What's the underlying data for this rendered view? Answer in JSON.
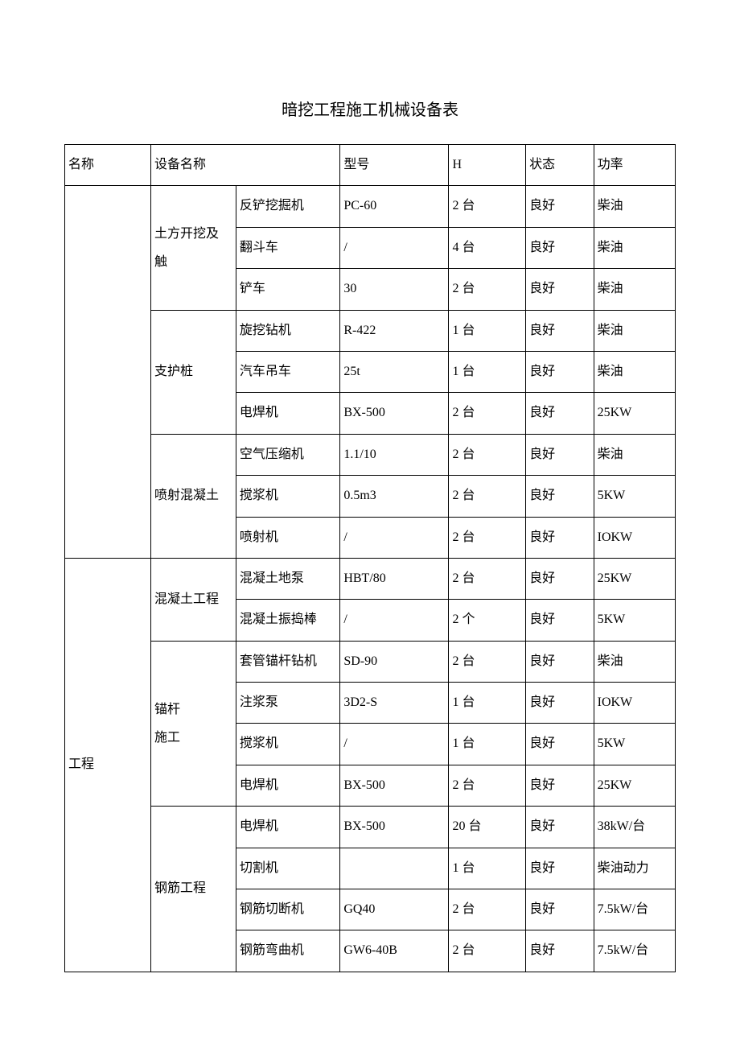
{
  "title": "暗挖工程施工机械设备表",
  "headers": {
    "name": "名称",
    "equip_name": "设备名称",
    "model": "型号",
    "h": "H",
    "status": "状态",
    "power": "功率"
  },
  "col1_group2": "工程",
  "categories": {
    "earthwork": "土方开挖及\n触",
    "piling": "支护桩",
    "shotcrete": "喷射混凝土",
    "concrete": "混凝土工程",
    "anchor": "锚杆\n施工",
    "rebar": "钢筋工程"
  },
  "rows": [
    {
      "equip": "反铲挖掘机",
      "model": "PC-60",
      "qty": "2 台",
      "status": "良好",
      "power": "柴油"
    },
    {
      "equip": "翻斗车",
      "model": "/",
      "qty": "4 台",
      "status": "良好",
      "power": "柴油"
    },
    {
      "equip": "铲车",
      "model": "30",
      "qty": "2 台",
      "status": "良好",
      "power": "柴油"
    },
    {
      "equip": "旋挖钻机",
      "model": "R-422",
      "qty": "1 台",
      "status": "良好",
      "power": "柴油"
    },
    {
      "equip": "汽车吊车",
      "model": "25t",
      "qty": "1 台",
      "status": "良好",
      "power": "柴油"
    },
    {
      "equip": "电焊机",
      "model": "BX-500",
      "qty": "2 台",
      "status": "良好",
      "power": "25KW"
    },
    {
      "equip": "空气压缩机",
      "model": "1.1/10",
      "qty": "2 台",
      "status": "良好",
      "power": "柴油"
    },
    {
      "equip": "搅浆机",
      "model": "0.5m3",
      "qty": "2 台",
      "status": "良好",
      "power": "5KW"
    },
    {
      "equip": "喷射机",
      "model": "/",
      "qty": "2 台",
      "status": "良好",
      "power": "IOKW"
    },
    {
      "equip": "混凝土地泵",
      "model": "HBT/80",
      "qty": "2 台",
      "status": "良好",
      "power": "25KW"
    },
    {
      "equip": "混凝土振捣棒",
      "model": "/",
      "qty": "2 个",
      "status": "良好",
      "power": "5KW"
    },
    {
      "equip": "套管锚杆钻机",
      "model": "SD-90",
      "qty": "2 台",
      "status": "良好",
      "power": "柴油"
    },
    {
      "equip": "注浆泵",
      "model": "3D2-S",
      "qty": "1 台",
      "status": "良好",
      "power": "IOKW"
    },
    {
      "equip": "搅浆机",
      "model": "/",
      "qty": "1 台",
      "status": "良好",
      "power": "5KW"
    },
    {
      "equip": "电焊机",
      "model": "BX-500",
      "qty": "2 台",
      "status": "良好",
      "power": "25KW"
    },
    {
      "equip": "电焊机",
      "model": "BX-500",
      "qty": "20 台",
      "status": "良好",
      "power": "38kW/台"
    },
    {
      "equip": "切割机",
      "model": "",
      "qty": "1 台",
      "status": "良好",
      "power": "柴油动力"
    },
    {
      "equip": "钢筋切断机",
      "model": "GQ40",
      "qty": "2 台",
      "status": "良好",
      "power": "7.5kW/台"
    },
    {
      "equip": "钢筋弯曲机",
      "model": "GW6-40B",
      "qty": "2 台",
      "status": "良好",
      "power": "7.5kW/台"
    }
  ],
  "styling": {
    "background_color": "#ffffff",
    "border_color": "#000000",
    "font_family": "SimSun",
    "title_fontsize": 20,
    "cell_fontsize": 16
  }
}
